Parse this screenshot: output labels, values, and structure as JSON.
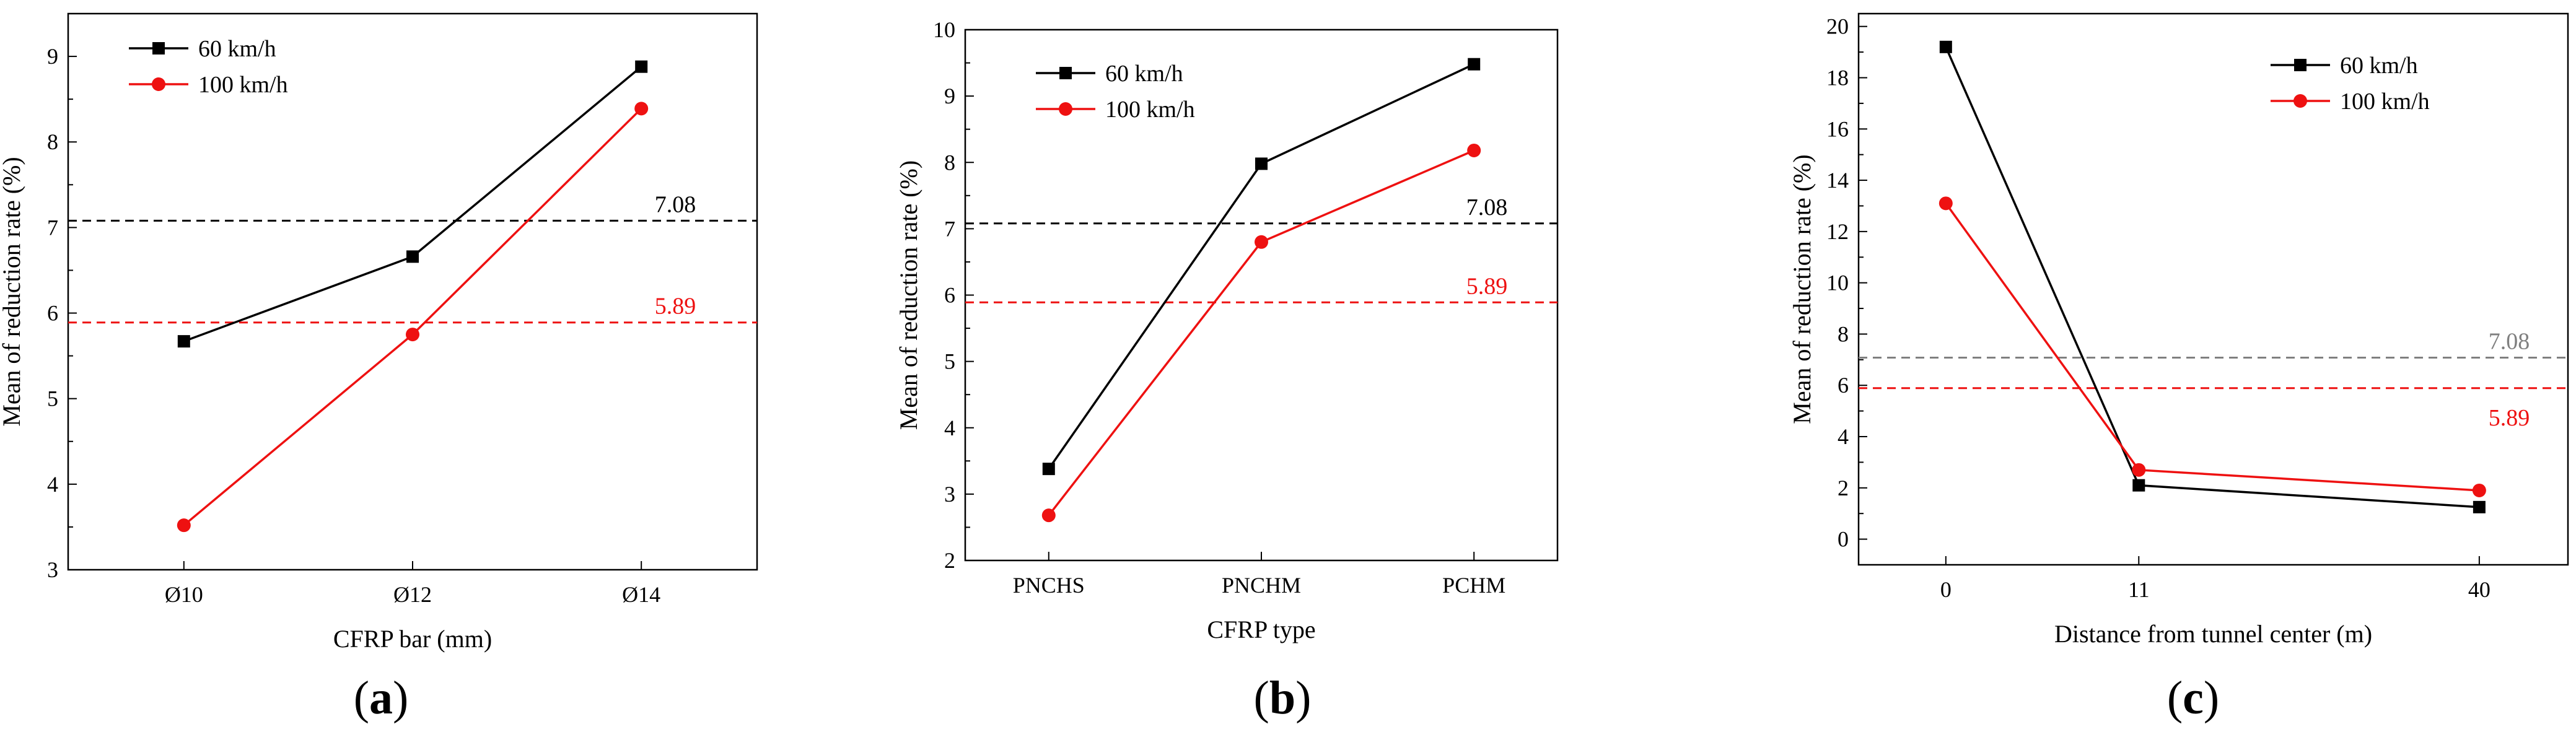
{
  "colors": {
    "series_60": "#000000",
    "series_100": "#ee1111",
    "ref_gray": "#7f7f7f"
  },
  "chart_data": [
    {
      "type": "line",
      "caption_letter": "a",
      "categories": [
        "Ø10",
        "Ø12",
        "Ø14"
      ],
      "xlabel": "CFRP bar (mm)",
      "ylabel": "Mean of reduction rate (%)",
      "ylim": [
        3,
        9.5
      ],
      "yticks": [
        3,
        4,
        5,
        6,
        7,
        8,
        9
      ],
      "series": [
        {
          "name": "60 km/h",
          "values": [
            5.67,
            6.66,
            8.88
          ]
        },
        {
          "name": "100 km/h",
          "values": [
            3.52,
            5.75,
            8.39
          ]
        }
      ],
      "reference_lines": [
        {
          "value": 7.08,
          "label": "7.08",
          "color": "black"
        },
        {
          "value": 5.89,
          "label": "5.89",
          "color": "red"
        }
      ],
      "legend_position": "top-left"
    },
    {
      "type": "line",
      "caption_letter": "b",
      "categories": [
        "PNCHS",
        "PNCHM",
        "PCHM"
      ],
      "xlabel": "CFRP type",
      "ylabel": "Mean of reduction rate (%)",
      "ylim": [
        2,
        10
      ],
      "yticks": [
        2,
        3,
        4,
        5,
        6,
        7,
        8,
        9,
        10
      ],
      "series": [
        {
          "name": "60 km/h",
          "values": [
            3.38,
            7.98,
            9.48
          ]
        },
        {
          "name": "100 km/h",
          "values": [
            2.68,
            6.8,
            8.18
          ]
        }
      ],
      "reference_lines": [
        {
          "value": 7.08,
          "label": "7.08",
          "color": "black"
        },
        {
          "value": 5.89,
          "label": "5.89",
          "color": "red"
        }
      ],
      "legend_position": "top-left"
    },
    {
      "type": "line",
      "caption_letter": "c",
      "categories": [
        "0",
        "11",
        "40"
      ],
      "xlabel": "Distance from tunnel center (m)",
      "ylabel": "Mean of reduction rate (%)",
      "ylim": [
        -1,
        20.5
      ],
      "yticks": [
        0,
        2,
        4,
        6,
        8,
        10,
        12,
        14,
        16,
        18,
        20
      ],
      "series": [
        {
          "name": "60 km/h",
          "values": [
            19.2,
            2.1,
            1.25
          ]
        },
        {
          "name": "100 km/h",
          "values": [
            13.1,
            2.7,
            1.9
          ]
        }
      ],
      "reference_lines": [
        {
          "value": 7.08,
          "label": "7.08",
          "color": "gray"
        },
        {
          "value": 5.89,
          "label": "5.89",
          "color": "red"
        }
      ],
      "legend_position": "top-right"
    }
  ]
}
